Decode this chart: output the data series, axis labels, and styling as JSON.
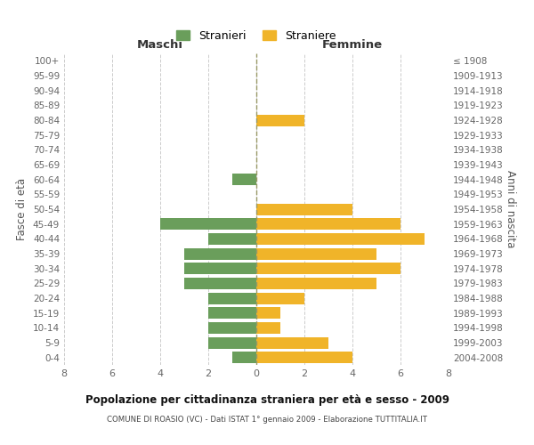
{
  "age_groups": [
    "0-4",
    "5-9",
    "10-14",
    "15-19",
    "20-24",
    "25-29",
    "30-34",
    "35-39",
    "40-44",
    "45-49",
    "50-54",
    "55-59",
    "60-64",
    "65-69",
    "70-74",
    "75-79",
    "80-84",
    "85-89",
    "90-94",
    "95-99",
    "100+"
  ],
  "birth_years": [
    "2004-2008",
    "1999-2003",
    "1994-1998",
    "1989-1993",
    "1984-1988",
    "1979-1983",
    "1974-1978",
    "1969-1973",
    "1964-1968",
    "1959-1963",
    "1954-1958",
    "1949-1953",
    "1944-1948",
    "1939-1943",
    "1934-1938",
    "1929-1933",
    "1924-1928",
    "1919-1923",
    "1914-1918",
    "1909-1913",
    "≤ 1908"
  ],
  "males": [
    1,
    2,
    2,
    2,
    2,
    3,
    3,
    3,
    2,
    4,
    0,
    0,
    1,
    0,
    0,
    0,
    0,
    0,
    0,
    0,
    0
  ],
  "females": [
    4,
    3,
    1,
    1,
    2,
    5,
    6,
    5,
    7,
    6,
    4,
    0,
    0,
    0,
    0,
    0,
    2,
    0,
    0,
    0,
    0
  ],
  "male_color": "#6a9e5b",
  "female_color": "#f0b429",
  "male_label": "Stranieri",
  "female_label": "Straniere",
  "title": "Popolazione per cittadinanza straniera per età e sesso - 2009",
  "subtitle": "COMUNE DI ROASIO (VC) - Dati ISTAT 1° gennaio 2009 - Elaborazione TUTTITALIA.IT",
  "ylabel_left": "Fasce di età",
  "ylabel_right": "Anni di nascita",
  "xlabel_left": "Maschi",
  "xlabel_right": "Femmine",
  "xlim": 8,
  "bg_color": "#ffffff",
  "grid_color": "#cccccc",
  "bar_height": 0.78
}
